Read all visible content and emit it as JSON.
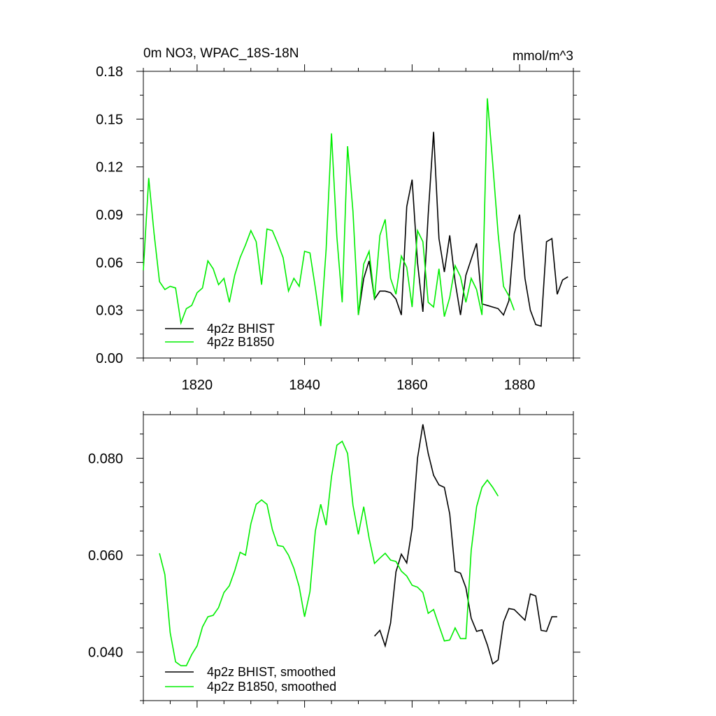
{
  "chart_data": [
    {
      "type": "line",
      "title": "0m NO3, WPAC_18S-18N",
      "units": "mmol/m^3",
      "xlabel": "",
      "ylabel": "",
      "xlim": [
        1810,
        1890
      ],
      "ylim": [
        0,
        0.18
      ],
      "x_ticks": [
        1820,
        1840,
        1860,
        1880
      ],
      "y_ticks": [
        0.0,
        0.03,
        0.06,
        0.09,
        0.12,
        0.15,
        0.18
      ],
      "y_tick_labels": [
        "0.00",
        "0.03",
        "0.06",
        "0.09",
        "0.12",
        "0.15",
        "0.18"
      ],
      "x_tick_labels": [
        "1820",
        "1840",
        "1860",
        "1880"
      ],
      "legend": "bottom-left",
      "grid": false,
      "series": [
        {
          "name": "4p2z BHIST",
          "color": "#000000",
          "x": [
            1850,
            1851,
            1852,
            1853,
            1854,
            1855,
            1856,
            1857,
            1858,
            1859,
            1860,
            1861,
            1862,
            1863,
            1864,
            1865,
            1866,
            1867,
            1868,
            1869,
            1870,
            1871,
            1872,
            1873,
            1874,
            1875,
            1876,
            1877,
            1878,
            1879,
            1880,
            1881,
            1882,
            1883,
            1884,
            1885,
            1886,
            1887,
            1888,
            1889
          ],
          "values": [
            0.027,
            0.05,
            0.061,
            0.037,
            0.042,
            0.042,
            0.041,
            0.037,
            0.027,
            0.095,
            0.112,
            0.06,
            0.029,
            0.09,
            0.142,
            0.075,
            0.054,
            0.077,
            0.048,
            0.027,
            0.052,
            0.062,
            0.072,
            0.034,
            0.033,
            0.032,
            0.031,
            0.027,
            0.036,
            0.078,
            0.09,
            0.05,
            0.03,
            0.021,
            0.02,
            0.073,
            0.075,
            0.04,
            0.049,
            0.051
          ]
        },
        {
          "name": "4p2z B1850",
          "color": "#00ee00",
          "x": [
            1810,
            1811,
            1812,
            1813,
            1814,
            1815,
            1816,
            1817,
            1818,
            1819,
            1820,
            1821,
            1822,
            1823,
            1824,
            1825,
            1826,
            1827,
            1828,
            1829,
            1830,
            1831,
            1832,
            1833,
            1834,
            1835,
            1836,
            1837,
            1838,
            1839,
            1840,
            1841,
            1842,
            1843,
            1844,
            1845,
            1846,
            1847,
            1848,
            1849,
            1850,
            1851,
            1852,
            1853,
            1854,
            1855,
            1856,
            1857,
            1858,
            1859,
            1860,
            1861,
            1862,
            1863,
            1864,
            1865,
            1866,
            1867,
            1868,
            1869,
            1870,
            1871,
            1872,
            1873,
            1874,
            1875,
            1876,
            1877,
            1878,
            1879
          ],
          "values": [
            0.055,
            0.113,
            0.078,
            0.048,
            0.043,
            0.045,
            0.044,
            0.022,
            0.031,
            0.033,
            0.041,
            0.044,
            0.061,
            0.056,
            0.046,
            0.05,
            0.035,
            0.052,
            0.063,
            0.071,
            0.08,
            0.073,
            0.046,
            0.081,
            0.08,
            0.072,
            0.063,
            0.042,
            0.05,
            0.045,
            0.067,
            0.066,
            0.044,
            0.02,
            0.068,
            0.141,
            0.076,
            0.035,
            0.133,
            0.092,
            0.027,
            0.059,
            0.067,
            0.037,
            0.077,
            0.087,
            0.05,
            0.04,
            0.064,
            0.057,
            0.032,
            0.08,
            0.073,
            0.035,
            0.032,
            0.056,
            0.026,
            0.038,
            0.058,
            0.051,
            0.035,
            0.05,
            0.043,
            0.027,
            0.163,
            0.122,
            0.078,
            0.045,
            0.039,
            0.03
          ]
        }
      ]
    },
    {
      "type": "line",
      "title": "",
      "units": "",
      "xlabel": "",
      "ylabel": "",
      "xlim": [
        1810,
        1890
      ],
      "ylim": [
        0.03,
        0.089
      ],
      "x_ticks": [
        1820,
        1840,
        1860,
        1880
      ],
      "y_ticks": [
        0.04,
        0.06,
        0.08
      ],
      "y_tick_labels": [
        "0.040",
        "0.060",
        "0.080"
      ],
      "legend": "bottom-left",
      "grid": false,
      "series": [
        {
          "name": "4p2z BHIST, smoothed",
          "color": "#000000",
          "x": [
            1853,
            1854,
            1855,
            1856,
            1857,
            1858,
            1859,
            1860,
            1861,
            1862,
            1863,
            1864,
            1865,
            1866,
            1867,
            1868,
            1869,
            1870,
            1871,
            1872,
            1873,
            1874,
            1875,
            1876,
            1877,
            1878,
            1879,
            1880,
            1881,
            1882,
            1883,
            1884,
            1885,
            1886,
            1887
          ],
          "values": [
            0.0433,
            0.0445,
            0.0413,
            0.046,
            0.0566,
            0.0602,
            0.0584,
            0.0655,
            0.08,
            0.087,
            0.081,
            0.0765,
            0.0745,
            0.074,
            0.0685,
            0.0567,
            0.0563,
            0.0533,
            0.047,
            0.0443,
            0.0446,
            0.0415,
            0.0376,
            0.0384,
            0.0462,
            0.049,
            0.0488,
            0.0477,
            0.0466,
            0.052,
            0.0516,
            0.0445,
            0.0443,
            0.0473,
            0.0473
          ]
        },
        {
          "name": "4p2z B1850, smoothed",
          "color": "#00ee00",
          "x": [
            1813,
            1814,
            1815,
            1816,
            1817,
            1818,
            1819,
            1820,
            1821,
            1822,
            1823,
            1824,
            1825,
            1826,
            1827,
            1828,
            1829,
            1830,
            1831,
            1832,
            1833,
            1834,
            1835,
            1836,
            1837,
            1838,
            1839,
            1840,
            1841,
            1842,
            1843,
            1844,
            1845,
            1846,
            1847,
            1848,
            1849,
            1850,
            1851,
            1852,
            1853,
            1854,
            1855,
            1856,
            1857,
            1858,
            1859,
            1860,
            1861,
            1862,
            1863,
            1864,
            1865,
            1866,
            1867,
            1868,
            1869,
            1870,
            1871,
            1872,
            1873,
            1874,
            1875,
            1876
          ],
          "values": [
            0.0604,
            0.056,
            0.044,
            0.038,
            0.0372,
            0.0372,
            0.0395,
            0.0413,
            0.0452,
            0.0473,
            0.0476,
            0.0492,
            0.0523,
            0.0537,
            0.0568,
            0.0606,
            0.06,
            0.0665,
            0.0705,
            0.0714,
            0.0705,
            0.0653,
            0.062,
            0.0618,
            0.06,
            0.0573,
            0.0535,
            0.0473,
            0.0525,
            0.065,
            0.0705,
            0.0662,
            0.0762,
            0.0827,
            0.0835,
            0.081,
            0.0703,
            0.0643,
            0.07,
            0.0635,
            0.0583,
            0.0594,
            0.0604,
            0.059,
            0.0587,
            0.0567,
            0.0557,
            0.0538,
            0.0534,
            0.0523,
            0.048,
            0.0488,
            0.0455,
            0.0423,
            0.0425,
            0.045,
            0.0428,
            0.0428,
            0.061,
            0.07,
            0.074,
            0.0755,
            0.074,
            0.0722
          ]
        }
      ]
    }
  ]
}
